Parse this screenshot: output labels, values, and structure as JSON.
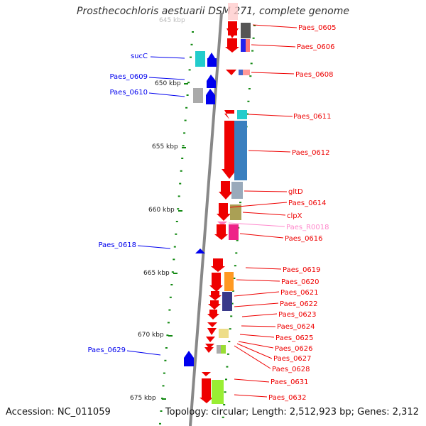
{
  "title": "Prosthecochloris aestuarii DSM 271, complete genome",
  "accession": "Accession: NC_011059",
  "summary": "Topology: circular; Length: 2,512,923 bp; Genes: 2,312",
  "scale": {
    "start_label": "645 kbp",
    "labels": [
      "650 kbp",
      "655 kbp",
      "660 kbp",
      "665 kbp",
      "670 kbp",
      "675 kbp"
    ]
  },
  "colors": {
    "forward": "#ee0000",
    "reverse": "#0000ee",
    "rna_label": "#ff88cc",
    "axis": "#888888",
    "tick": "#118811"
  },
  "forward_genes": [
    {
      "name": "Paes_0605"
    },
    {
      "name": "Paes_0606"
    },
    {
      "name": "Paes_0608"
    },
    {
      "name": "Paes_0611"
    },
    {
      "name": "Paes_0612"
    },
    {
      "name": "gltD"
    },
    {
      "name": "Paes_0614"
    },
    {
      "name": "clpX"
    },
    {
      "name": "Paes_R0018"
    },
    {
      "name": "Paes_0616"
    },
    {
      "name": "Paes_0619"
    },
    {
      "name": "Paes_0620"
    },
    {
      "name": "Paes_0621"
    },
    {
      "name": "Paes_0622"
    },
    {
      "name": "Paes_0623"
    },
    {
      "name": "Paes_0624"
    },
    {
      "name": "Paes_0625"
    },
    {
      "name": "Paes_0626"
    },
    {
      "name": "Paes_0627"
    },
    {
      "name": "Paes_0628"
    },
    {
      "name": "Paes_0631"
    },
    {
      "name": "Paes_0632"
    }
  ],
  "reverse_genes": [
    {
      "name": "sucC"
    },
    {
      "name": "Paes_0609"
    },
    {
      "name": "Paes_0610"
    },
    {
      "name": "Paes_0618"
    },
    {
      "name": "Paes_0629"
    }
  ]
}
